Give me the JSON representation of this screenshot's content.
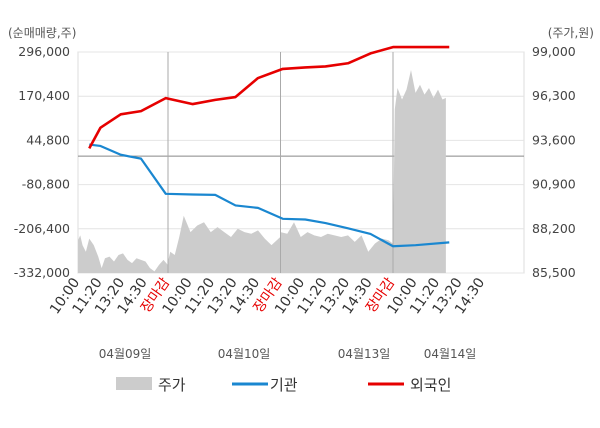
{
  "chart_data": {
    "type": "line",
    "left_axis_unit": "(순매매량,주)",
    "right_axis_unit": "(주가,원)",
    "left_ticks": [
      "296,000",
      "170,400",
      "44,800",
      "-80,800",
      "-206,400",
      "-332,000"
    ],
    "right_ticks": [
      "99,000",
      "96,300",
      "93,600",
      "90,900",
      "88,200",
      "85,500"
    ],
    "left_ylim": [
      -332000,
      296000
    ],
    "right_ylim": [
      85500,
      99000
    ],
    "x_tick_labels": [
      "10:00",
      "11:20",
      "13:20",
      "14:30",
      "장마감",
      "10:00",
      "11:20",
      "13:20",
      "14:30",
      "장마감",
      "10:00",
      "11:20",
      "13:20",
      "14:30",
      "장마감",
      "10:00",
      "11:20",
      "13:20",
      "14:30"
    ],
    "closing_label": "장마감",
    "dates": [
      "04월09일",
      "04월10일",
      "04월13일",
      "04월14일"
    ],
    "colors": {
      "price": "#cccccc",
      "institution": "#1a87d0",
      "foreign": "#e60000",
      "grid": "#e4e4e4",
      "zero": "#888888"
    },
    "legend": [
      {
        "name": "주가",
        "kind": "area",
        "color": "#cccccc"
      },
      {
        "name": "기관",
        "kind": "line",
        "color": "#1a87d0"
      },
      {
        "name": "외국인",
        "kind": "line",
        "color": "#e60000"
      }
    ],
    "series": [
      {
        "name": "기관",
        "unit": "주",
        "x": [
          0.5,
          1,
          1.9,
          2.8,
          3.9,
          5.1,
          6.1,
          7,
          8,
          9.1,
          10.1,
          11,
          12,
          13,
          14,
          15,
          16.5
        ],
        "values": [
          33000,
          29000,
          4000,
          -7000,
          -107000,
          -109000,
          -110000,
          -140000,
          -147000,
          -178000,
          -180000,
          -190000,
          -205000,
          -221000,
          -256000,
          -253000,
          -245000
        ]
      },
      {
        "name": "외국인",
        "unit": "주",
        "x": [
          0.5,
          1,
          1.9,
          2.8,
          3.9,
          5.1,
          6.1,
          7,
          8,
          9.1,
          10.1,
          11,
          12,
          13,
          14,
          15,
          16.5
        ],
        "values": [
          22000,
          81000,
          119000,
          128000,
          165000,
          148000,
          160000,
          168000,
          222000,
          248000,
          252000,
          255000,
          264000,
          292000,
          310000,
          310000,
          310000
        ]
      },
      {
        "name": "주가",
        "unit": "원",
        "segments": [
          {
            "x": [
              0,
              0.1,
              0.2,
              0.35,
              0.5,
              0.7,
              0.9,
              1.05,
              1.2,
              1.4,
              1.6,
              1.8,
              2,
              2.2,
              2.4,
              2.6,
              2.8,
              3,
              3.2,
              3.4,
              3.6,
              3.8,
              3.99
            ],
            "values": [
              87500,
              87800,
              87200,
              86800,
              87600,
              87200,
              86500,
              85800,
              86400,
              86500,
              86200,
              86600,
              86700,
              86300,
              86100,
              86400,
              86300,
              86200,
              85800,
              85600,
              86000,
              86300,
              86000
            ]
          },
          {
            "x": [
              4,
              4.1,
              4.3,
              4.5,
              4.7,
              5,
              5.3,
              5.6,
              5.9,
              6.2,
              6.5,
              6.8,
              7.1,
              7.4,
              7.7,
              8,
              8.3,
              8.6,
              8.99
            ],
            "values": [
              86200,
              86800,
              86600,
              87700,
              89000,
              88000,
              88400,
              88600,
              88000,
              88300,
              88000,
              87700,
              88200,
              88000,
              87900,
              88100,
              87600,
              87200,
              87700
            ]
          },
          {
            "x": [
              9,
              9.3,
              9.6,
              9.9,
              10.2,
              10.5,
              10.8,
              11.1,
              11.4,
              11.7,
              12,
              12.3,
              12.6,
              12.9,
              13.2,
              13.5,
              13.8,
              13.99
            ],
            "values": [
              88000,
              87900,
              88600,
              87700,
              88000,
              87800,
              87700,
              87900,
              87800,
              87700,
              87800,
              87400,
              87800,
              86800,
              87300,
              87600,
              87500,
              87300
            ]
          },
          {
            "x": [
              14,
              14.08,
              14.2,
              14.4,
              14.6,
              14.8,
              15,
              15.2,
              15.4,
              15.6,
              15.8,
              16,
              16.2,
              16.35
            ],
            "values": [
              87300,
              95500,
              96800,
              96100,
              96700,
              97900,
              96500,
              97000,
              96400,
              96800,
              96200,
              96700,
              96100,
              96200
            ]
          }
        ]
      }
    ]
  }
}
